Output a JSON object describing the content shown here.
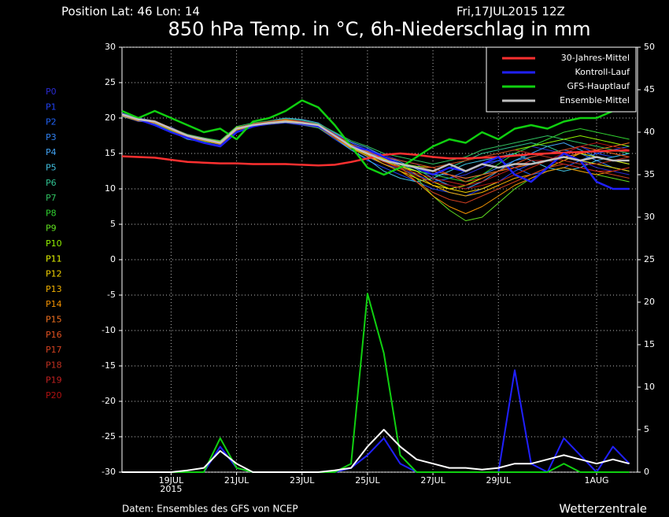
{
  "chart_data": {
    "type": "line",
    "position": "Position  Lat: 46 Lon: 14",
    "date": "Fri,17JUL2015 12Z",
    "title": "850 hPa Temp. in °C, 6h-Niederschlag in mm",
    "source": "Daten: Ensembles des GFS von NCEP",
    "credit": "Wetterzentrale",
    "categories": [
      null,
      null,
      null,
      "19JUL",
      null,
      null,
      null,
      "21JUL",
      null,
      null,
      null,
      "23JUL",
      null,
      null,
      null,
      "25JUL",
      null,
      null,
      null,
      "27JUL",
      null,
      null,
      null,
      "29JUL",
      null,
      null,
      null,
      null,
      null,
      "1AUG",
      null,
      null
    ],
    "x_sublabel": "2015",
    "ylim": [
      -30,
      30
    ],
    "yticks": [
      -30,
      -25,
      -20,
      -15,
      -10,
      -5,
      0,
      5,
      10,
      15,
      20,
      25,
      30
    ],
    "y2lim": [
      0,
      50
    ],
    "y2ticks": [
      0,
      5,
      10,
      15,
      20,
      25,
      30,
      35,
      40,
      45,
      50
    ],
    "grid": true,
    "legend": "upper right",
    "series": [
      {
        "name": "30-Jahres-Mittel",
        "color": "#ff3030",
        "values": [
          14.6,
          14.5,
          14.4,
          14.1,
          13.8,
          13.7,
          13.6,
          13.6,
          13.5,
          13.5,
          13.5,
          13.4,
          13.3,
          13.4,
          13.8,
          14.3,
          14.8,
          15.0,
          14.8,
          14.5,
          14.3,
          14.3,
          14.4,
          14.5,
          14.7,
          14.9,
          15.0,
          15.1,
          15.2,
          15.3,
          15.4,
          15.4
        ]
      },
      {
        "name": "Kontroll-Lauf",
        "color": "#2020ff",
        "values": [
          20.5,
          19.8,
          19,
          18,
          17.2,
          16.5,
          16,
          18,
          18.8,
          19.3,
          19.5,
          19.2,
          18.8,
          17.5,
          16,
          15.5,
          14.5,
          13.5,
          13,
          12,
          13,
          12.5,
          13.5,
          14.5,
          12,
          11,
          13,
          15,
          14,
          11,
          10,
          10
        ]
      },
      {
        "name": "GFS-Hauptlauf",
        "color": "#10d010",
        "values": [
          21,
          20,
          21,
          20,
          19,
          18,
          18.5,
          17,
          19.5,
          20,
          21,
          22.5,
          21.5,
          19,
          16,
          13,
          12,
          13,
          14.5,
          16,
          17,
          16.5,
          18,
          17,
          18.5,
          19,
          18.5,
          19.5,
          20,
          20,
          21,
          21
        ]
      },
      {
        "name": "Ensemble-Mittel",
        "color": "#c0c0c0",
        "values": [
          20.5,
          19.8,
          19.5,
          18.5,
          17.5,
          17,
          16.5,
          18.5,
          19,
          19.3,
          19.5,
          19.3,
          19,
          17.5,
          16,
          15,
          14,
          13.5,
          13,
          12.5,
          13.5,
          12.5,
          13.5,
          13,
          13.5,
          13.5,
          14,
          14.5,
          14,
          14.5,
          14,
          14
        ]
      }
    ],
    "precip_series": [
      {
        "color": "#2020ff",
        "axis": "y2",
        "values": [
          0,
          0,
          0,
          0,
          0,
          0,
          3,
          0.5,
          0,
          0,
          0,
          0,
          0,
          0,
          0.5,
          2,
          4,
          1,
          0,
          0,
          0,
          0,
          0,
          0,
          12,
          1,
          0,
          4,
          2,
          0,
          3,
          1
        ]
      },
      {
        "color": "#10d010",
        "axis": "y2",
        "values": [
          0,
          0,
          0,
          0,
          0,
          0,
          4,
          0.5,
          0,
          0,
          0,
          0,
          0,
          0,
          1,
          21,
          14,
          2,
          0,
          0,
          0,
          0,
          0,
          0,
          0,
          0,
          0,
          1,
          0,
          0,
          0,
          0
        ]
      },
      {
        "color": "#ffffff",
        "axis": "y2",
        "values": [
          0,
          0,
          0,
          0,
          0.2,
          0.5,
          2.5,
          1,
          0,
          0,
          0,
          0,
          0,
          0.2,
          0.5,
          3,
          5,
          3,
          1.5,
          1,
          0.5,
          0.5,
          0.3,
          0.5,
          1,
          1,
          1.5,
          2,
          1.5,
          1,
          1.5,
          1
        ]
      }
    ],
    "members": [
      {
        "name": "P0",
        "color": "#2a2ad0",
        "values": [
          20.3,
          19.5,
          19.6,
          18.2,
          17.3,
          16.8,
          16.2,
          18.2,
          19.2,
          19.5,
          19.8,
          19.6,
          19.1,
          17.8,
          16.5,
          15.5,
          14.8,
          14,
          13.5,
          12,
          11.5,
          12,
          13,
          14,
          15,
          16,
          15.5,
          15,
          14,
          13,
          12.5,
          12
        ]
      },
      {
        "name": "P1",
        "color": "#2040f0",
        "values": [
          20.6,
          19.9,
          19.3,
          18.7,
          17.6,
          17.1,
          16.8,
          18.7,
          18.8,
          19.1,
          19.3,
          19,
          18.6,
          17,
          15.5,
          14,
          13,
          12,
          11,
          10,
          9.5,
          9,
          10,
          11,
          12.5,
          13.5,
          14,
          15,
          16,
          15,
          14.5,
          15
        ]
      },
      {
        "name": "P2",
        "color": "#2060f0",
        "values": [
          20.4,
          19.7,
          19.4,
          18.4,
          17.4,
          16.9,
          16.4,
          18.4,
          19.1,
          19.4,
          19.6,
          19.4,
          18.9,
          17.3,
          15.8,
          14.5,
          13.5,
          12.8,
          12,
          11,
          11.5,
          12.5,
          13.5,
          14,
          13,
          12,
          12.5,
          13,
          14,
          15,
          15.5,
          16
        ]
      },
      {
        "name": "P3",
        "color": "#3080f0",
        "values": [
          20.7,
          20,
          19.6,
          18.6,
          17.6,
          17.2,
          16.7,
          18.6,
          19,
          19.2,
          19.4,
          19.1,
          18.7,
          17.6,
          16.2,
          15.2,
          14.2,
          13.2,
          12.5,
          12,
          12,
          11.5,
          12,
          13,
          14,
          14.5,
          15,
          15.5,
          15,
          14,
          13,
          12.5
        ]
      },
      {
        "name": "P4",
        "color": "#40a0f0",
        "values": [
          20.2,
          19.6,
          19.2,
          18.1,
          17,
          16.6,
          16,
          18,
          18.9,
          19.6,
          20,
          19.8,
          19.3,
          17.9,
          16.6,
          15.8,
          14.6,
          13.8,
          12.8,
          11.5,
          10.5,
          10,
          11,
          12.5,
          14,
          15,
          16,
          16.5,
          15.5,
          14.5,
          14,
          13.5
        ]
      },
      {
        "name": "P5",
        "color": "#40c0e0",
        "values": [
          20.5,
          19.9,
          19.5,
          18.5,
          17.4,
          16.9,
          16.5,
          18.6,
          19.2,
          19.4,
          19.5,
          19.2,
          18.9,
          17.2,
          15.5,
          14.2,
          12.5,
          11.5,
          11,
          11.5,
          12.5,
          13.5,
          14,
          14.5,
          15,
          14,
          13,
          12.5,
          13,
          14,
          14.5,
          15
        ]
      },
      {
        "name": "P6",
        "color": "#30c090",
        "values": [
          20.6,
          19.8,
          19.4,
          18.3,
          17.3,
          17,
          16.6,
          18.5,
          19,
          19.3,
          19.6,
          19.4,
          19.1,
          17.7,
          16.3,
          15.5,
          14.5,
          13.5,
          12.5,
          12,
          13,
          14,
          15,
          15.5,
          16,
          16.5,
          16,
          15,
          14,
          13.5,
          13,
          12.5
        ]
      },
      {
        "name": "P7",
        "color": "#30c060",
        "values": [
          20.4,
          19.7,
          19.5,
          18.6,
          17.7,
          17.2,
          16.8,
          18.8,
          19.3,
          19.6,
          19.9,
          19.7,
          19.2,
          18,
          16.8,
          16,
          15,
          14.5,
          14,
          13.5,
          14,
          14.5,
          15.5,
          16,
          16.5,
          17,
          17.5,
          17,
          16.5,
          16,
          15.5,
          15
        ]
      },
      {
        "name": "P8",
        "color": "#30d030",
        "values": [
          20.3,
          19.6,
          19.3,
          18.2,
          17.2,
          16.7,
          16.3,
          18.3,
          18.9,
          19.2,
          19.4,
          19.1,
          18.6,
          17.2,
          15.8,
          14.8,
          13.8,
          13,
          12.5,
          12,
          11.5,
          11,
          12,
          13.5,
          15,
          16,
          17,
          18,
          18.5,
          18,
          17.5,
          17
        ]
      },
      {
        "name": "P9",
        "color": "#60e020",
        "values": [
          20.5,
          19.8,
          19.6,
          18.4,
          17.5,
          16.9,
          16.5,
          18.4,
          19,
          19.3,
          19.6,
          19.3,
          18.9,
          17.4,
          15.9,
          14.9,
          14,
          13,
          11.5,
          9,
          7,
          5.5,
          6,
          8,
          10,
          11.5,
          12.5,
          13,
          12.5,
          12,
          11.5,
          11
        ]
      },
      {
        "name": "P10",
        "color": "#90f000",
        "values": [
          20.6,
          19.9,
          19.5,
          18.6,
          17.6,
          17.1,
          16.7,
          18.7,
          19.1,
          19.4,
          19.7,
          19.5,
          19,
          17.6,
          16.1,
          15,
          14.2,
          13.6,
          13.2,
          13,
          13.5,
          14,
          14.5,
          15,
          15.5,
          16,
          16.5,
          17,
          17.5,
          17,
          16.5,
          16
        ]
      },
      {
        "name": "P11",
        "color": "#e0f000",
        "values": [
          20.4,
          19.7,
          19.4,
          18.4,
          17.4,
          16.9,
          16.4,
          18.4,
          19,
          19.3,
          19.5,
          19.2,
          18.8,
          17.3,
          15.8,
          14.8,
          13.8,
          13.2,
          12.5,
          11,
          10,
          10.5,
          11.5,
          12.5,
          13,
          13.5,
          14,
          14.5,
          15,
          14.5,
          14,
          13.5
        ]
      },
      {
        "name": "P12",
        "color": "#f0d000",
        "values": [
          20.5,
          19.8,
          19.5,
          18.5,
          17.5,
          17,
          16.5,
          18.5,
          19,
          19.4,
          19.6,
          19.3,
          19,
          17.5,
          16,
          14.8,
          13.5,
          12.5,
          11.5,
          10.5,
          10,
          9.5,
          10,
          11,
          12,
          13,
          14,
          14.5,
          14,
          13.5,
          13,
          12.5
        ]
      },
      {
        "name": "P13",
        "color": "#f0b000",
        "values": [
          20.6,
          19.9,
          19.6,
          18.6,
          17.6,
          17.1,
          16.6,
          18.6,
          19.1,
          19.5,
          19.7,
          19.4,
          19.1,
          17.6,
          16.2,
          15.3,
          14.3,
          13.5,
          12,
          10.5,
          9.5,
          9,
          9.5,
          10.5,
          11.5,
          12,
          13,
          14,
          15,
          15.5,
          15,
          14.5
        ]
      },
      {
        "name": "P14",
        "color": "#f09000",
        "values": [
          20.3,
          19.6,
          19.3,
          18.3,
          17.3,
          16.8,
          16.3,
          18.3,
          18.8,
          19.2,
          19.4,
          19.1,
          18.7,
          17.2,
          15.7,
          14.6,
          13.5,
          12.5,
          11,
          9,
          7.5,
          6.5,
          7.5,
          9,
          10.5,
          11.5,
          12.5,
          13,
          12.5,
          12,
          12.5,
          13
        ]
      },
      {
        "name": "P15",
        "color": "#f07020",
        "values": [
          20.5,
          19.8,
          19.5,
          18.5,
          17.5,
          17,
          16.5,
          18.5,
          19,
          19.3,
          19.5,
          19.3,
          19,
          17.5,
          16,
          15,
          14,
          13.5,
          13,
          12.5,
          12,
          11.5,
          12,
          12.5,
          13,
          13.5,
          14,
          14.5,
          15,
          15.5,
          16,
          16.5
        ]
      },
      {
        "name": "P16",
        "color": "#e05020",
        "values": [
          20.4,
          19.7,
          19.4,
          18.4,
          17.4,
          16.9,
          16.4,
          18.4,
          19,
          19.3,
          19.5,
          19.2,
          18.8,
          17.4,
          16,
          15.2,
          14.5,
          14,
          13.5,
          13,
          12,
          11,
          11.5,
          12.5,
          13.5,
          14.5,
          15,
          15.5,
          16,
          15.5,
          15,
          14.5
        ]
      },
      {
        "name": "P17",
        "color": "#d04020",
        "values": [
          20.6,
          19.9,
          19.6,
          18.6,
          17.6,
          17.1,
          16.6,
          18.6,
          19.2,
          19.5,
          19.8,
          19.5,
          19.1,
          17.7,
          16.3,
          15.4,
          14.5,
          13,
          11,
          9.5,
          8.5,
          8,
          9,
          10,
          11,
          12,
          13,
          13.5,
          13,
          12.5,
          12,
          11.5
        ]
      },
      {
        "name": "P18",
        "color": "#c03020",
        "values": [
          20.5,
          19.8,
          19.5,
          18.5,
          17.5,
          17,
          16.5,
          18.5,
          19,
          19.3,
          19.5,
          19.3,
          19,
          17.5,
          16,
          15,
          14,
          13.5,
          13,
          13,
          13.5,
          14,
          14.5,
          15,
          15.5,
          15,
          14.5,
          14,
          13.5,
          13.5,
          14,
          14.5
        ]
      },
      {
        "name": "P19",
        "color": "#c02020",
        "values": [
          20.4,
          19.7,
          19.4,
          18.4,
          17.4,
          16.9,
          16.4,
          18.4,
          19,
          19.3,
          19.5,
          19.2,
          18.8,
          17.3,
          15.9,
          14.9,
          13.8,
          13,
          12.2,
          11.5,
          11,
          10.5,
          11,
          12,
          13,
          14,
          14,
          13.5,
          13,
          12.5,
          12.5,
          13
        ]
      },
      {
        "name": "P20",
        "color": "#b01010",
        "values": [
          20.5,
          19.8,
          19.5,
          18.5,
          17.5,
          17,
          16.5,
          18.5,
          19,
          19.3,
          19.5,
          19.3,
          19,
          17.5,
          16,
          15,
          13.8,
          12.8,
          11.8,
          11,
          10.5,
          10,
          10.5,
          11,
          12,
          13,
          14,
          15,
          16,
          16.5,
          16,
          15.5
        ]
      }
    ]
  }
}
